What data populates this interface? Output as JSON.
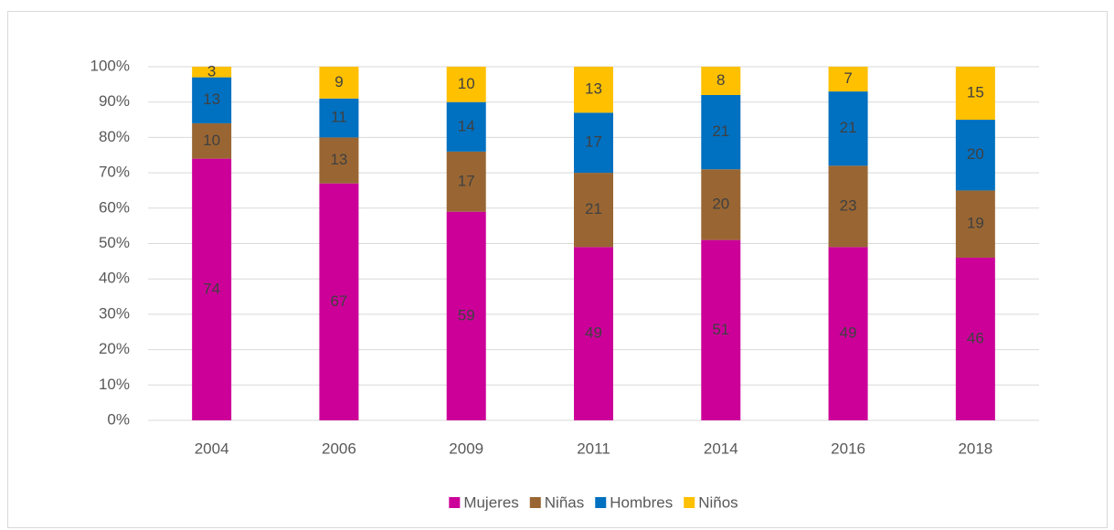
{
  "chart_data": {
    "type": "stacked_bar",
    "categories": [
      "2004",
      "2006",
      "2009",
      "2011",
      "2014",
      "2016",
      "2018"
    ],
    "series": [
      {
        "name": "Mujeres",
        "color": "#cc0099",
        "values": [
          74,
          67,
          59,
          49,
          51,
          49,
          46
        ]
      },
      {
        "name": "Niñas",
        "color": "#996633",
        "values": [
          10,
          13,
          17,
          21,
          20,
          23,
          19
        ]
      },
      {
        "name": "Hombres",
        "color": "#0070c0",
        "values": [
          13,
          11,
          14,
          17,
          21,
          21,
          20
        ]
      },
      {
        "name": "Niños",
        "color": "#ffc000",
        "values": [
          3,
          9,
          10,
          13,
          8,
          7,
          15
        ]
      }
    ],
    "ylim": [
      0,
      100
    ],
    "yticks": [
      {
        "value": 0,
        "label": "0%"
      },
      {
        "value": 10,
        "label": "10%"
      },
      {
        "value": 20,
        "label": "20%"
      },
      {
        "value": 30,
        "label": "30%"
      },
      {
        "value": 40,
        "label": "40%"
      },
      {
        "value": 50,
        "label": "50%"
      },
      {
        "value": 60,
        "label": "60%"
      },
      {
        "value": 70,
        "label": "70%"
      },
      {
        "value": 80,
        "label": "80%"
      },
      {
        "value": 90,
        "label": "90%"
      },
      {
        "value": 100,
        "label": "100%"
      }
    ],
    "grid": true,
    "legend": "bottom",
    "data_labels": true
  }
}
